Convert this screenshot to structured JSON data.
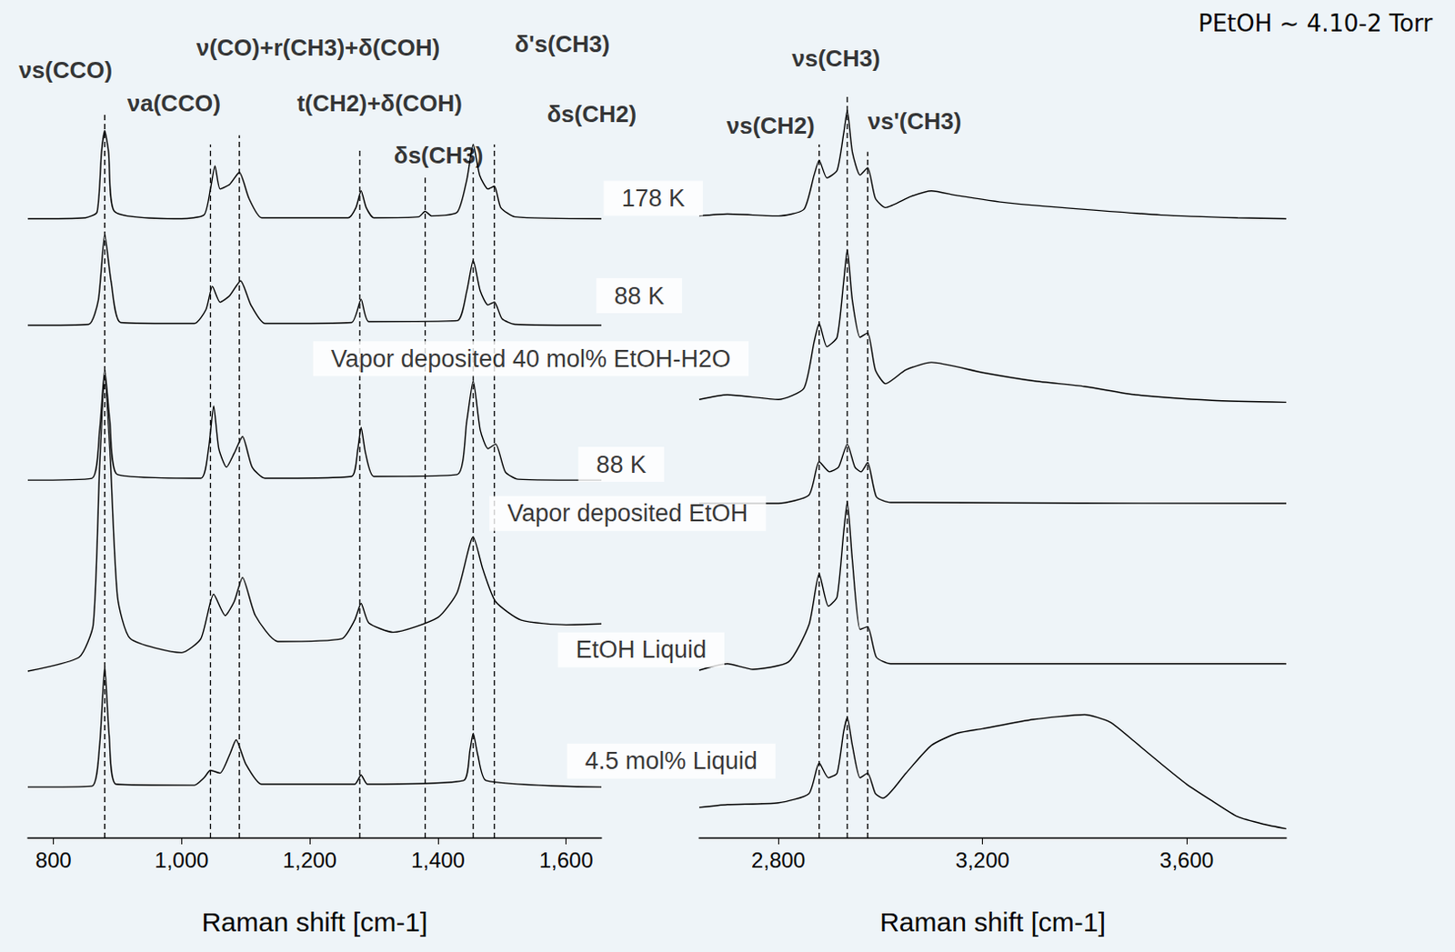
{
  "chart_data": [
    {
      "type": "line",
      "xlabel": "Raman shift [cm-1]",
      "xlim": [
        760,
        1655
      ],
      "xticks": [
        800,
        1000,
        1200,
        1400,
        1600
      ],
      "ylim": [
        0,
        900
      ],
      "tick_labels": "x",
      "grid": false,
      "color": "#000000",
      "series": [
        {
          "x": [
            760,
            850,
            868,
            875,
            880,
            886,
            895,
            1000,
            1035,
            1045,
            1052,
            1060,
            1075,
            1090,
            1105,
            1125,
            1260,
            1272,
            1280,
            1288,
            1300,
            1370,
            1380,
            1390,
            1430,
            1445,
            1455,
            1465,
            1478,
            1488,
            1498,
            1520,
            1655
          ],
          "values": [
            668,
            669,
            675,
            740,
            763,
            740,
            676,
            668,
            672,
            700,
            725,
            700,
            705,
            718,
            690,
            669,
            669,
            680,
            698,
            680,
            669,
            670,
            676,
            671,
            675,
            710,
            748,
            715,
            700,
            703,
            680,
            670,
            668
          ]
        },
        {
          "x": [
            760,
            855,
            870,
            880,
            890,
            905,
            1020,
            1038,
            1048,
            1060,
            1075,
            1092,
            1108,
            1130,
            1265,
            1280,
            1292,
            1430,
            1445,
            1455,
            1466,
            1478,
            1488,
            1500,
            1520,
            1655
          ],
          "values": [
            553,
            554,
            580,
            651,
            600,
            556,
            555,
            570,
            595,
            578,
            585,
            601,
            575,
            555,
            556,
            581,
            557,
            558,
            590,
            623,
            590,
            575,
            578,
            560,
            554,
            553
          ]
        },
        {
          "x": [
            760,
            860,
            872,
            880,
            888,
            900,
            1030,
            1042,
            1050,
            1058,
            1070,
            1082,
            1095,
            1110,
            1130,
            1265,
            1275,
            1280,
            1287,
            1300,
            1430,
            1445,
            1455,
            1466,
            1478,
            1490,
            1505,
            1525,
            1655
          ],
          "values": [
            386,
            388,
            440,
            505,
            450,
            392,
            388,
            420,
            466,
            420,
            400,
            415,
            433,
            400,
            388,
            390,
            420,
            443,
            415,
            390,
            392,
            450,
            493,
            440,
            420,
            425,
            395,
            387,
            386
          ]
        },
        {
          "x": [
            760,
            840,
            862,
            872,
            880,
            888,
            900,
            920,
            1000,
            1030,
            1050,
            1068,
            1082,
            1095,
            1115,
            1150,
            1250,
            1270,
            1280,
            1292,
            1330,
            1400,
            1430,
            1455,
            1470,
            1490,
            1530,
            1600,
            1655
          ],
          "values": [
            180,
            195,
            230,
            400,
            498,
            420,
            260,
            215,
            200,
            215,
            263,
            240,
            255,
            281,
            240,
            212,
            215,
            235,
            253,
            232,
            222,
            238,
            265,
            325,
            290,
            255,
            235,
            230,
            231
          ]
        },
        {
          "x": [
            760,
            860,
            872,
            880,
            887,
            898,
            1020,
            1035,
            1045,
            1060,
            1075,
            1085,
            1100,
            1125,
            1270,
            1280,
            1290,
            1440,
            1450,
            1455,
            1462,
            1475,
            1655
          ],
          "values": [
            55,
            56,
            100,
            185,
            110,
            58,
            57,
            65,
            73,
            70,
            90,
            106,
            80,
            58,
            58,
            68,
            58,
            62,
            95,
            113,
            90,
            62,
            55
          ]
        }
      ],
      "vlines": {
        "line_style": "dashed",
        "lines": [
          {
            "x": 880,
            "y": [
              0,
              783
            ]
          },
          {
            "x": 1045,
            "y": [
              0,
              748
            ]
          },
          {
            "x": 1090,
            "y": [
              0,
              758
            ]
          },
          {
            "x": 1278,
            "y": [
              0,
              743
            ]
          },
          {
            "x": 1380,
            "y": [
              0,
              713
            ]
          },
          {
            "x": 1455,
            "y": [
              0,
              718
            ]
          },
          {
            "x": 1488,
            "y": [
              0,
              748
            ]
          }
        ]
      },
      "peak_labels": [
        {
          "text": "νs(CCO)",
          "x": 819,
          "y": 828
        },
        {
          "text": "νa(CCO)",
          "x": 988,
          "y": 793
        },
        {
          "text": "ν(CO)+r(CH3)+δ(COH)",
          "x": 1213,
          "y": 853
        },
        {
          "text": "t(CH2)+δ(COH)",
          "x": 1309,
          "y": 793
        },
        {
          "text": "δ's(CH3)",
          "x": 1594,
          "y": 856
        },
        {
          "text": "δs(CH3)",
          "x": 1401,
          "y": 736
        },
        {
          "text": "δs(CH2)",
          "x": 1640,
          "y": 781
        }
      ],
      "annotations": [
        {
          "text": "178 K",
          "x": 1736,
          "y": 690
        },
        {
          "text": "88 K",
          "x": 1714,
          "y": 585
        },
        {
          "text": "Vapor deposited 40 mol% EtOH-H2O",
          "x": 1545,
          "y": 517
        },
        {
          "text": "88 K",
          "x": 1686,
          "y": 403
        },
        {
          "text": "Vapor deposited EtOH",
          "x": 1696,
          "y": 350
        },
        {
          "text": "EtOH Liquid",
          "x": 1717,
          "y": 203
        },
        {
          "text": "4.5 mol% Liquid",
          "x": 1764,
          "y": 83
        }
      ]
    },
    {
      "type": "line",
      "title": "PEtOH ~ 4.10-2 Torr",
      "xlabel": "Raman shift [cm-1]",
      "xlim": [
        2645,
        3795
      ],
      "xticks": [
        2800,
        3200,
        3600
      ],
      "ylim": [
        0,
        900
      ],
      "tick_labels": "x",
      "grid": false,
      "color": "#000000",
      "series": [
        {
          "x": [
            2645,
            2700,
            2800,
            2850,
            2870,
            2880,
            2895,
            2915,
            2928,
            2935,
            2945,
            2960,
            2975,
            2990,
            3010,
            3060,
            3100,
            3150,
            3250,
            3400,
            3550,
            3700,
            3795
          ],
          "values": [
            671,
            673,
            671,
            678,
            715,
            731,
            712,
            720,
            760,
            785,
            740,
            715,
            723,
            690,
            680,
            692,
            698,
            693,
            685,
            678,
            672,
            669,
            668
          ]
        },
        {
          "x": [
            2645,
            2700,
            2800,
            2850,
            2870,
            2880,
            2895,
            2915,
            2928,
            2935,
            2945,
            2960,
            2975,
            2990,
            3010,
            3050,
            3100,
            3200,
            3300,
            3400,
            3500,
            3650,
            3795
          ],
          "values": [
            473,
            478,
            473,
            485,
            535,
            555,
            530,
            540,
            600,
            635,
            580,
            540,
            545,
            505,
            490,
            505,
            513,
            502,
            493,
            487,
            478,
            472,
            470
          ]
        },
        {
          "x": [
            2645,
            2800,
            2860,
            2880,
            2900,
            2918,
            2935,
            2950,
            2962,
            2975,
            2992,
            3020,
            3795
          ],
          "values": [
            361,
            361,
            370,
            406,
            395,
            400,
            425,
            400,
            395,
            405,
            368,
            362,
            361
          ]
        },
        {
          "x": [
            2645,
            2700,
            2750,
            2820,
            2860,
            2880,
            2898,
            2915,
            2928,
            2935,
            2945,
            2960,
            2975,
            2992,
            3020,
            3795
          ],
          "values": [
            181,
            188,
            182,
            190,
            230,
            285,
            250,
            260,
            330,
            363,
            300,
            225,
            228,
            195,
            188,
            188
          ]
        },
        {
          "x": [
            2645,
            2700,
            2800,
            2860,
            2880,
            2898,
            2915,
            2928,
            2935,
            2945,
            2960,
            2975,
            2990,
            3005,
            3050,
            3100,
            3150,
            3200,
            3300,
            3400,
            3450,
            3500,
            3550,
            3600,
            3650,
            3700,
            3750,
            3795
          ],
          "values": [
            33,
            36,
            38,
            48,
            81,
            65,
            70,
            115,
            130,
            100,
            65,
            70,
            48,
            43,
            70,
            100,
            113,
            118,
            128,
            133,
            125,
            103,
            80,
            58,
            40,
            23,
            15,
            10
          ]
        }
      ],
      "vlines": {
        "line_style": "dashed",
        "lines": [
          {
            "x": 2880,
            "y": [
              0,
              748
            ]
          },
          {
            "x": 2935,
            "y": [
              0,
              803
            ]
          },
          {
            "x": 2975,
            "y": [
              0,
              740
            ]
          }
        ]
      },
      "peak_labels": [
        {
          "text": "νs(CH3)",
          "x": 2913,
          "y": 841
        },
        {
          "text": "νs(CH2)",
          "x": 2785,
          "y": 768
        },
        {
          "text": "νs'(CH3)",
          "x": 3067,
          "y": 773
        }
      ],
      "annotations": []
    }
  ]
}
